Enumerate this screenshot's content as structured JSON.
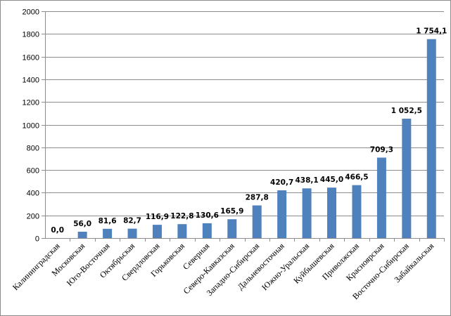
{
  "chart_data": {
    "type": "bar",
    "title": "",
    "xlabel": "",
    "ylabel": "",
    "ylim": [
      0,
      2000
    ],
    "ytick_step": 200,
    "grid": true,
    "legend": "none",
    "bar_color": "#4f81bd",
    "categories": [
      "Калининградская",
      "Московская",
      "Юго-Восточная",
      "Октябрьская",
      "Свердловская",
      "Горьковская",
      "Северная",
      "Северо-Кавказская",
      "Западно-Сибирская",
      "Дальневосточная",
      "Южно-Уральская",
      "Куйбышевская",
      "Приволжская",
      "Красноярская",
      "Восточно-Сибирская",
      "Забайкальская"
    ],
    "values": [
      0.0,
      56.0,
      81.6,
      82.7,
      116.9,
      122.8,
      130.6,
      165.9,
      287.8,
      420.7,
      438.1,
      445.0,
      466.5,
      709.3,
      1052.5,
      1754.1
    ],
    "data_labels": [
      "0,0",
      "56,0",
      "81,6",
      "82,7",
      "116,9",
      "122,8",
      "130,6",
      "165,9",
      "287,8",
      "420,7",
      "438,1",
      "445,0",
      "466,5",
      "709,3",
      "1 052,5",
      "1 754,1"
    ],
    "ytick_labels": [
      "0",
      "200",
      "400",
      "600",
      "800",
      "1000",
      "1200",
      "1400",
      "1600",
      "1800",
      "2000"
    ]
  }
}
